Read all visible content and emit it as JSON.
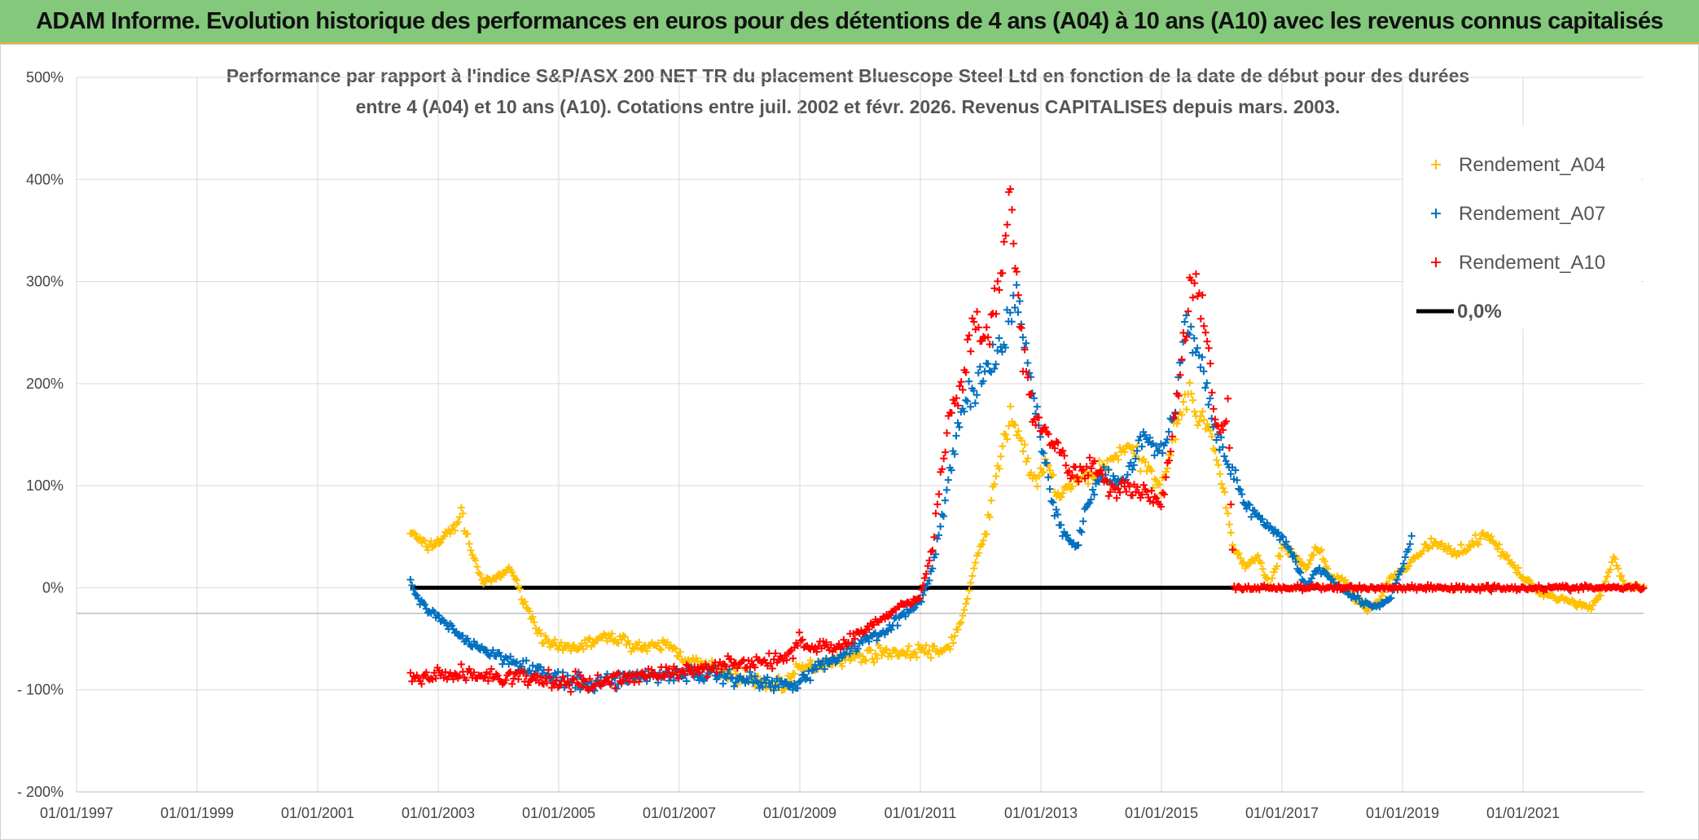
{
  "banner": {
    "title": "ADAM Informe. Evolution historique des performances en euros pour des détentions de 4 ans (A04) à 10 ans (A10) avec les revenus connus capitalisés"
  },
  "colors": {
    "a04": "#ffc000",
    "a07": "#0070c0",
    "a10": "#ff0000",
    "zero": "#000000",
    "grid": "#d9d9d9",
    "banner": "#83c87b"
  },
  "chart_data": {
    "type": "scatter",
    "title_lines": [
      "Performance par rapport à l'indice S&P/ASX 200 NET TR  du placement Bluescope Steel Ltd en fonction de la date de début pour des durées",
      "entre 4 (A04) et 10 ans (A10). Cotations entre juil. 2002 et févr. 2026. Revenus CAPITALISES depuis mars. 2003."
    ],
    "xlabel": "",
    "ylabel": "",
    "xlim": [
      1997.0,
      2023.0
    ],
    "ylim": [
      -200,
      500
    ],
    "ytick_values": [
      -200,
      -100,
      0,
      100,
      200,
      300,
      400,
      500
    ],
    "ytick_labels": [
      "- 200%",
      "- 100%",
      "0%",
      "100%",
      "200%",
      "300%",
      "400%",
      "500%"
    ],
    "xtick_values": [
      1997,
      1999,
      2001,
      2003,
      2005,
      2007,
      2009,
      2011,
      2013,
      2015,
      2017,
      2019,
      2021
    ],
    "xtick_labels": [
      "01/01/1997",
      "01/01/1999",
      "01/01/2001",
      "01/01/2003",
      "01/01/2005",
      "01/01/2007",
      "01/01/2009",
      "01/01/2011",
      "01/01/2013",
      "01/01/2015",
      "01/01/2017",
      "01/01/2019",
      "01/01/2021"
    ],
    "legend": {
      "position": "top-right",
      "entries": [
        "Rendement_A04",
        "Rendement_A07",
        "Rendement_A10",
        "0,0%"
      ]
    },
    "series": [
      {
        "name": "Rendement_A04",
        "marker": "+",
        "x": [
          2002.54,
          2002.8,
          2003.0,
          2003.2,
          2003.4,
          2003.55,
          2003.75,
          2004.0,
          2004.2,
          2004.4,
          2004.6,
          2004.8,
          2005.0,
          2005.3,
          2005.6,
          2005.9,
          2006.2,
          2006.5,
          2006.8,
          2007.0,
          2007.3,
          2007.6,
          2007.9,
          2008.2,
          2008.5,
          2008.8,
          2009.0,
          2009.3,
          2009.6,
          2009.9,
          2010.2,
          2010.5,
          2010.8,
          2011.0,
          2011.3,
          2011.5,
          2011.7,
          2011.9,
          2012.1,
          2012.3,
          2012.5,
          2012.7,
          2012.9,
          2013.1,
          2013.3,
          2013.5,
          2013.8,
          2014.1,
          2014.4,
          2014.7,
          2015.0,
          2015.2,
          2015.4,
          2015.6,
          2015.8,
          2016.0,
          2016.2,
          2016.4,
          2016.6,
          2016.8,
          2017.0,
          2017.2,
          2017.4,
          2017.6,
          2017.8,
          2018.0,
          2018.2,
          2018.4,
          2018.6,
          2018.8,
          2019.0,
          2019.2,
          2019.5,
          2019.8,
          2020.1,
          2020.4,
          2020.7,
          2021.0,
          2021.3,
          2021.6,
          2021.9,
          2022.1,
          2022.3,
          2022.5,
          2022.7,
          2023.0
        ],
        "y": [
          55,
          40,
          45,
          55,
          72,
          35,
          5,
          10,
          20,
          -10,
          -35,
          -55,
          -60,
          -58,
          -52,
          -48,
          -55,
          -60,
          -55,
          -65,
          -75,
          -80,
          -85,
          -90,
          -95,
          -92,
          -80,
          -75,
          -70,
          -68,
          -65,
          -62,
          -65,
          -60,
          -65,
          -55,
          -30,
          20,
          60,
          120,
          170,
          140,
          100,
          120,
          90,
          100,
          110,
          120,
          140,
          120,
          100,
          150,
          190,
          170,
          160,
          100,
          40,
          20,
          30,
          0,
          40,
          30,
          20,
          40,
          10,
          10,
          -10,
          -20,
          -15,
          10,
          15,
          30,
          45,
          35,
          40,
          55,
          30,
          10,
          -5,
          -10,
          -15,
          -20,
          -5,
          30,
          0,
          0
        ]
      },
      {
        "name": "Rendement_A07",
        "marker": "+",
        "x": [
          2002.54,
          2002.7,
          2002.9,
          2003.1,
          2003.3,
          2003.5,
          2003.7,
          2003.9,
          2004.1,
          2004.3,
          2004.5,
          2004.7,
          2004.9,
          2005.1,
          2005.3,
          2005.5,
          2005.7,
          2005.9,
          2006.2,
          2006.5,
          2006.8,
          2007.1,
          2007.4,
          2007.7,
          2008.0,
          2008.3,
          2008.6,
          2008.9,
          2009.2,
          2009.5,
          2009.8,
          2010.1,
          2010.4,
          2010.7,
          2011.0,
          2011.2,
          2011.4,
          2011.6,
          2011.8,
          2012.0,
          2012.2,
          2012.4,
          2012.6,
          2012.8,
          2013.0,
          2013.2,
          2013.4,
          2013.6,
          2013.8,
          2014.1,
          2014.4,
          2014.7,
          2015.0,
          2015.2,
          2015.4,
          2015.6,
          2015.8,
          2016.0,
          2016.2,
          2016.4,
          2016.6,
          2016.8,
          2017.0,
          2017.2,
          2017.4,
          2017.6,
          2017.8,
          2018.0,
          2018.2,
          2018.4,
          2018.6,
          2018.8,
          2019.0,
          2019.15
        ],
        "y": [
          5,
          -15,
          -25,
          -35,
          -45,
          -52,
          -58,
          -65,
          -68,
          -72,
          -78,
          -82,
          -88,
          -92,
          -94,
          -95,
          -93,
          -90,
          -88,
          -86,
          -85,
          -84,
          -85,
          -86,
          -88,
          -92,
          -95,
          -93,
          -82,
          -72,
          -62,
          -50,
          -42,
          -28,
          -15,
          20,
          80,
          150,
          190,
          200,
          220,
          240,
          290,
          210,
          150,
          80,
          50,
          40,
          90,
          110,
          105,
          150,
          130,
          170,
          260,
          230,
          180,
          140,
          110,
          80,
          70,
          55,
          50,
          30,
          0,
          20,
          10,
          0,
          -10,
          -15,
          -20,
          -10,
          20,
          50
        ]
      },
      {
        "name": "Rendement_A10",
        "marker": "+",
        "x": [
          2002.54,
          2002.8,
          2003.1,
          2003.4,
          2003.7,
          2004.0,
          2004.3,
          2004.6,
          2004.9,
          2005.2,
          2005.5,
          2005.8,
          2006.1,
          2006.4,
          2006.7,
          2007.0,
          2007.3,
          2007.6,
          2007.9,
          2008.2,
          2008.5,
          2008.8,
          2009.0,
          2009.2,
          2009.4,
          2009.6,
          2009.8,
          2010.0,
          2010.2,
          2010.4,
          2010.6,
          2010.8,
          2011.0,
          2011.2,
          2011.35,
          2011.5,
          2011.7,
          2011.9,
          2012.1,
          2012.3,
          2012.5,
          2012.7,
          2012.9,
          2013.1,
          2013.3,
          2013.5,
          2013.7,
          2013.9,
          2014.2,
          2014.5,
          2014.8,
          2015.0,
          2015.2,
          2015.35,
          2015.5,
          2015.7,
          2015.9,
          2016.0,
          2016.1,
          2016.2,
          2016.5,
          2017.0,
          2017.5,
          2018.0,
          2018.5,
          2019.0,
          2019.5,
          2020.0,
          2020.5,
          2021.0,
          2021.5,
          2022.0,
          2022.5,
          2023.0
        ],
        "y": [
          -90,
          -88,
          -86,
          -84,
          -86,
          -88,
          -88,
          -90,
          -92,
          -93,
          -94,
          -92,
          -88,
          -85,
          -83,
          -84,
          -80,
          -76,
          -72,
          -75,
          -72,
          -70,
          -48,
          -60,
          -55,
          -62,
          -50,
          -45,
          -35,
          -30,
          -20,
          -15,
          -10,
          40,
          110,
          170,
          200,
          260,
          240,
          290,
          380,
          230,
          160,
          150,
          140,
          110,
          115,
          120,
          95,
          100,
          90,
          80,
          160,
          230,
          300,
          270,
          160,
          150,
          180,
          0,
          0,
          0,
          0,
          0,
          0,
          0,
          0,
          0,
          0,
          0,
          0,
          0,
          0,
          0
        ]
      },
      {
        "name": "0,0%",
        "line": true,
        "x": [
          2002.54,
          2023.0
        ],
        "y": [
          0,
          0
        ]
      }
    ]
  }
}
